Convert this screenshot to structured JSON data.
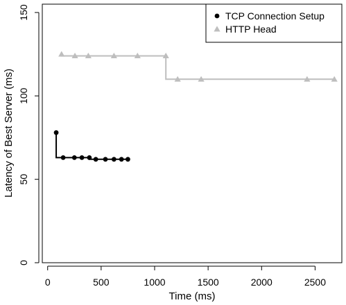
{
  "chart_data": {
    "type": "line",
    "xlabel": "Time (ms)",
    "ylabel": "Latency of Best Server (ms)",
    "xlim": [
      -50,
      2750
    ],
    "ylim": [
      0,
      155
    ],
    "x_ticks": [
      0,
      500,
      1000,
      1500,
      2000,
      2500
    ],
    "y_ticks": [
      0,
      50,
      100,
      150
    ],
    "grid": false,
    "legend": "top-right",
    "series": [
      {
        "name": "TCP Connection Setup",
        "marker": "circle",
        "color": "#000000",
        "step": true,
        "x": [
          80,
          145,
          250,
          320,
          390,
          450,
          540,
          620,
          690,
          750
        ],
        "y": [
          78,
          63,
          63,
          63,
          63,
          62,
          62,
          62,
          62,
          62
        ]
      },
      {
        "name": "HTTP Head",
        "marker": "triangle",
        "color": "#bebebe",
        "step": true,
        "x": [
          130,
          255,
          380,
          620,
          840,
          1105,
          1215,
          1435,
          2425,
          2680
        ],
        "y": [
          125,
          124,
          124,
          124,
          124,
          124,
          110,
          110,
          110,
          110
        ]
      }
    ]
  }
}
